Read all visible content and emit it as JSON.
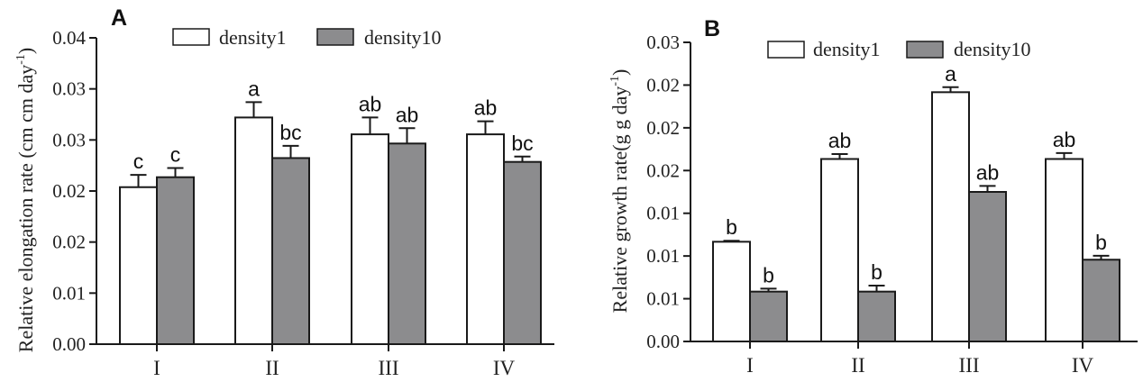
{
  "colors": {
    "density1": "#ffffff",
    "density10": "#8c8c8e",
    "stroke": "#1a1a1a"
  },
  "chart_data": [
    {
      "type": "bar",
      "panel": "A",
      "categories": [
        "I",
        "II",
        "III",
        "IV"
      ],
      "ylabel": "Relative elongation rate (cm cm day",
      "ylabel_sup": "-1",
      "ylabel_end": ")",
      "ylim": [
        0,
        0.04
      ],
      "ytick_labels": [
        "0.00",
        "0.01",
        "0.02",
        "0.02",
        "0.03",
        "0.03",
        "0.04"
      ],
      "legend": [
        "density1",
        "density10"
      ],
      "legend_position": "top",
      "series": [
        {
          "name": "density1",
          "values": [
            0.0205,
            0.0296,
            0.0274,
            0.0274
          ],
          "errors": [
            0.0016,
            0.002,
            0.0022,
            0.0017
          ],
          "letters": [
            "c",
            "a",
            "ab",
            "ab"
          ]
        },
        {
          "name": "density10",
          "values": [
            0.0218,
            0.0243,
            0.0262,
            0.0238
          ],
          "errors": [
            0.0012,
            0.0016,
            0.002,
            0.0007
          ],
          "letters": [
            "c",
            "bc",
            "ab",
            "bc"
          ]
        }
      ]
    },
    {
      "type": "bar",
      "panel": "B",
      "categories": [
        "I",
        "II",
        "III",
        "IV"
      ],
      "ylabel": "Relative growth rate(g g day",
      "ylabel_sup": "-1",
      "ylabel_end": ")",
      "ylim": [
        0,
        0.03
      ],
      "ytick_labels": [
        "0.00",
        "0.01",
        "0.01",
        "0.01",
        "0.02",
        "0.02",
        "0.02",
        "0.03"
      ],
      "legend": [
        "density1",
        "density10"
      ],
      "legend_position": "top",
      "series": [
        {
          "name": "density1",
          "values": [
            0.01,
            0.0183,
            0.025,
            0.0183
          ],
          "errors": [
            0.0001,
            0.0005,
            0.0005,
            0.0006
          ],
          "letters": [
            "b",
            "ab",
            "a",
            "ab"
          ]
        },
        {
          "name": "density10",
          "values": [
            0.005,
            0.005,
            0.015,
            0.0082
          ],
          "errors": [
            0.0003,
            0.0006,
            0.0006,
            0.0004
          ],
          "letters": [
            "b",
            "b",
            "ab",
            "b"
          ]
        }
      ]
    }
  ]
}
